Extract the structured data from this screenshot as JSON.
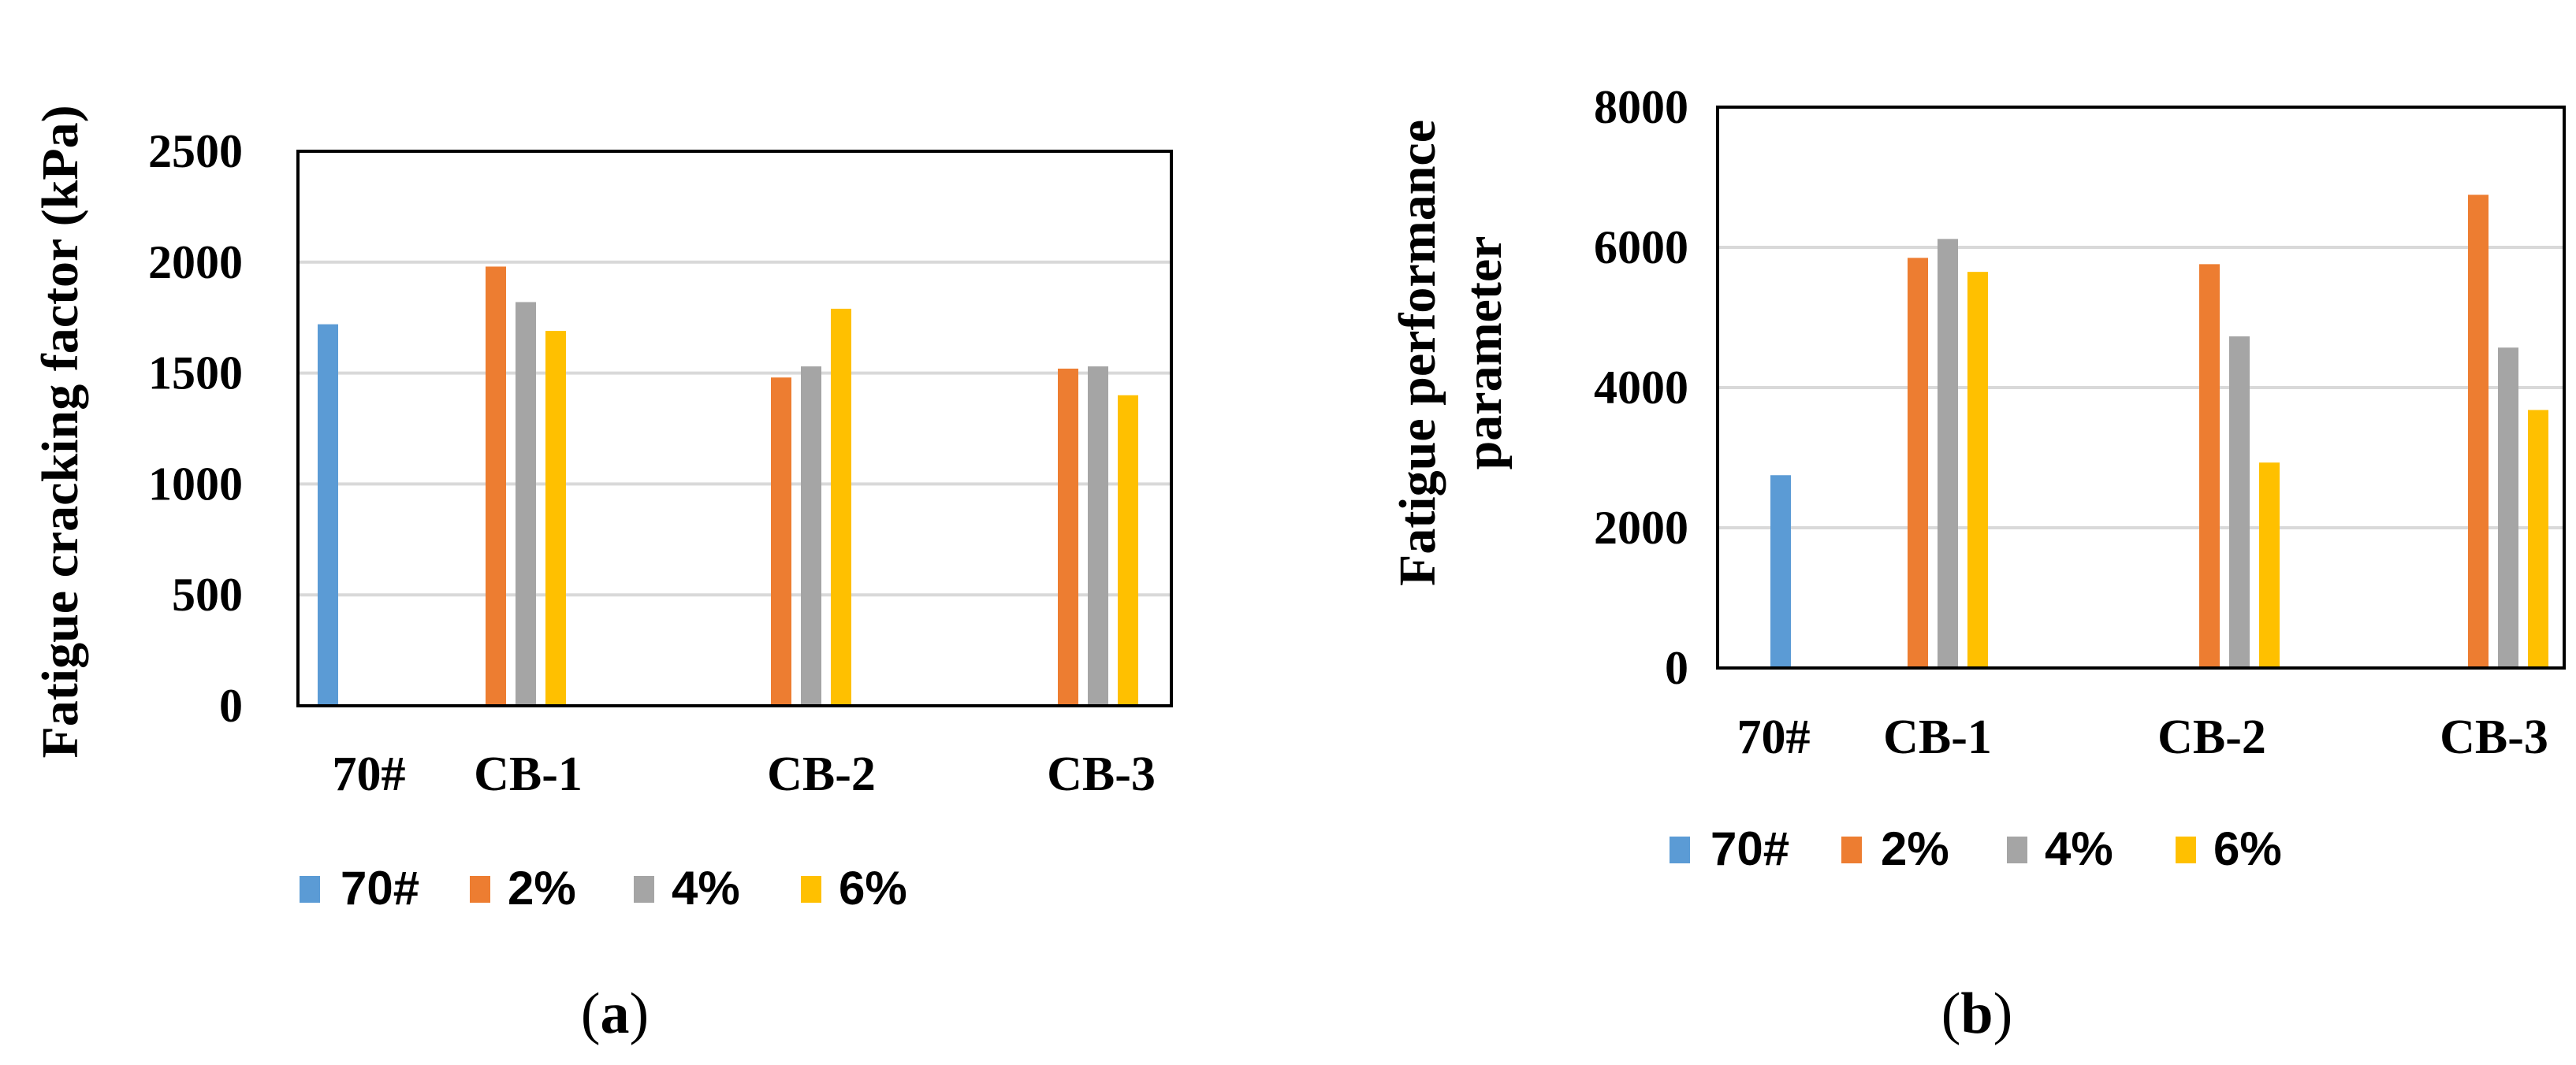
{
  "chart_data": [
    {
      "type": "bar",
      "panel": "a",
      "caption": {
        "open": "(",
        "letter": "a",
        "close": ")"
      },
      "ylabel": "Fatigue cracking factor (kPa)",
      "xlabel": "",
      "ylim": [
        0,
        2500
      ],
      "yticks": [
        0,
        500,
        1000,
        1500,
        2000,
        2500
      ],
      "grid": true,
      "legend_position": "bottom",
      "categories": [
        "70#",
        "CB-1",
        "CB-2",
        "CB-3"
      ],
      "series": [
        {
          "name": "70#",
          "color": "#5B9BD5",
          "values": [
            1720,
            null,
            null,
            null
          ]
        },
        {
          "name": "2%",
          "color": "#ED7D31",
          "values": [
            null,
            1980,
            1480,
            1520
          ]
        },
        {
          "name": "4%",
          "color": "#A5A5A5",
          "values": [
            null,
            1820,
            1530,
            1530
          ]
        },
        {
          "name": "6%",
          "color": "#FFC000",
          "values": [
            null,
            1690,
            1790,
            1400
          ]
        }
      ]
    },
    {
      "type": "bar",
      "panel": "b",
      "caption": {
        "open": "(",
        "letter": "b",
        "close": ")"
      },
      "ylabel_lines": [
        "Fatigue performance",
        "parameter"
      ],
      "xlabel": "",
      "ylim": [
        0,
        8000
      ],
      "yticks": [
        0,
        2000,
        4000,
        6000,
        8000
      ],
      "grid": true,
      "legend_position": "bottom",
      "categories": [
        "70#",
        "CB-1",
        "CB-2",
        "CB-3"
      ],
      "series": [
        {
          "name": "70#",
          "color": "#5B9BD5",
          "values": [
            2750,
            null,
            null,
            null
          ]
        },
        {
          "name": "2%",
          "color": "#ED7D31",
          "values": [
            null,
            5850,
            5760,
            6750
          ]
        },
        {
          "name": "4%",
          "color": "#A5A5A5",
          "values": [
            null,
            6120,
            4730,
            4570
          ]
        },
        {
          "name": "6%",
          "color": "#FFC000",
          "values": [
            null,
            5650,
            2930,
            3680
          ]
        }
      ]
    }
  ]
}
